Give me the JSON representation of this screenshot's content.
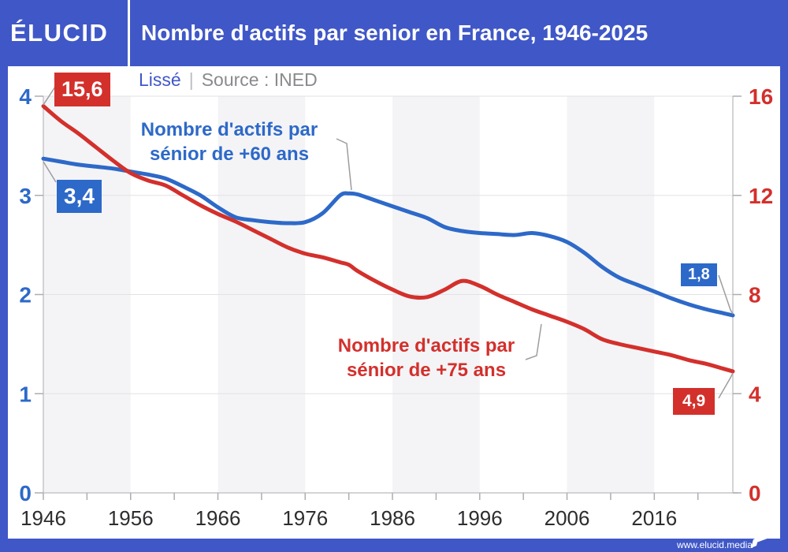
{
  "header": {
    "logo": "ÉLUCID",
    "title": "Nombre d'actifs par senior en France, 1946-2025"
  },
  "subtitle": {
    "smoothing": "Lissé",
    "separator": "|",
    "source": "Source : INED"
  },
  "footer": {
    "url": "www.elucid.media"
  },
  "colors": {
    "brand_blue": "#4057C7",
    "line_blue": "#2D69C8",
    "line_red": "#D3302C",
    "band": "#F4F4F6",
    "grid": "#E2E2E6",
    "axis_line": "#C6C6CA",
    "tick": "#ADADB2",
    "axis_text_dark": "#2D2D30",
    "muted_text": "#8A8A8E",
    "callout": "#9D9DA0"
  },
  "chart_data": {
    "type": "line",
    "title": "Nombre d'actifs par senior en France, 1946-2025",
    "subtitle": "Lissé",
    "source": "Source : INED",
    "grid": true,
    "right_axis_scale_factor": 4,
    "shaded_decades": [
      1946,
      1966,
      1986,
      2006
    ],
    "x_axis": {
      "labeled_ticks": [
        1946,
        1956,
        1966,
        1976,
        1986,
        1996,
        2006,
        2016
      ],
      "minor_tick_step": 5,
      "range": [
        1946,
        2026
      ]
    },
    "y_axis_left": {
      "color": "blue",
      "ticks": [
        0,
        1,
        2,
        3,
        4
      ],
      "range": [
        0,
        4
      ]
    },
    "y_axis_right": {
      "color": "red",
      "ticks": [
        0,
        4,
        8,
        12,
        16
      ],
      "range": [
        0,
        16
      ]
    },
    "x": [
      1946,
      1948,
      1950,
      1952,
      1954,
      1956,
      1958,
      1960,
      1962,
      1964,
      1966,
      1968,
      1970,
      1972,
      1974,
      1976,
      1978,
      1980,
      1981,
      1982,
      1984,
      1986,
      1988,
      1990,
      1992,
      1994,
      1996,
      1998,
      2000,
      2002,
      2004,
      2006,
      2008,
      2010,
      2012,
      2014,
      2016,
      2018,
      2020,
      2022,
      2024,
      2025
    ],
    "series": [
      {
        "name": "Nombre d'actifs par sénior de +60 ans",
        "axis": "left",
        "color": "#2D69C8",
        "label_lines": [
          "Nombre d'actifs par",
          "sénior de +60 ans"
        ],
        "start_label": "3,4",
        "end_label": "1,8",
        "values": [
          3.37,
          3.34,
          3.31,
          3.29,
          3.27,
          3.24,
          3.21,
          3.17,
          3.09,
          3.0,
          2.88,
          2.78,
          2.75,
          2.73,
          2.72,
          2.73,
          2.82,
          3.0,
          3.02,
          3.01,
          2.95,
          2.89,
          2.83,
          2.77,
          2.68,
          2.64,
          2.62,
          2.61,
          2.6,
          2.62,
          2.59,
          2.53,
          2.42,
          2.28,
          2.17,
          2.1,
          2.03,
          1.96,
          1.9,
          1.85,
          1.81,
          1.79
        ]
      },
      {
        "name": "Nombre d'actifs par sénior de +75 ans",
        "axis": "right",
        "color": "#D3302C",
        "label_lines": [
          "Nombre d'actifs par",
          "sénior de +75 ans"
        ],
        "start_label": "15,6",
        "end_label": "4,9",
        "values": [
          15.6,
          15.0,
          14.5,
          13.95,
          13.4,
          12.9,
          12.6,
          12.4,
          12.0,
          11.6,
          11.25,
          10.95,
          10.6,
          10.25,
          9.9,
          9.65,
          9.5,
          9.3,
          9.2,
          8.95,
          8.55,
          8.2,
          7.92,
          7.9,
          8.2,
          8.55,
          8.35,
          8.0,
          7.7,
          7.4,
          7.15,
          6.9,
          6.6,
          6.2,
          6.0,
          5.85,
          5.7,
          5.55,
          5.35,
          5.2,
          5.0,
          4.9
        ]
      }
    ]
  }
}
